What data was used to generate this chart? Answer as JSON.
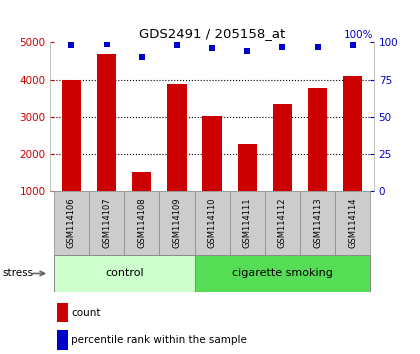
{
  "title": "GDS2491 / 205158_at",
  "samples": [
    "GSM114106",
    "GSM114107",
    "GSM114108",
    "GSM114109",
    "GSM114110",
    "GSM114111",
    "GSM114112",
    "GSM114113",
    "GSM114114"
  ],
  "counts": [
    4000,
    4700,
    1520,
    3880,
    3020,
    2280,
    3340,
    3780,
    4100
  ],
  "percentiles": [
    98,
    99,
    90,
    98,
    96,
    94,
    97,
    97,
    98
  ],
  "ylim_left": [
    1000,
    5000
  ],
  "ylim_right": [
    0,
    100
  ],
  "yticks_left": [
    1000,
    2000,
    3000,
    4000,
    5000
  ],
  "yticks_right": [
    0,
    25,
    50,
    75,
    100
  ],
  "bar_color": "#cc0000",
  "dot_color": "#0000cc",
  "n_control": 4,
  "control_label": "control",
  "smoking_label": "cigarette smoking",
  "stress_label": "stress",
  "legend_count": "count",
  "legend_percentile": "percentile rank within the sample",
  "control_color_light": "#ccffcc",
  "smoking_color": "#55dd55",
  "tick_label_color_left": "#cc0000",
  "tick_label_color_right": "#0000cc",
  "bar_bottom": 1000,
  "bar_width": 0.55,
  "label_box_color": "#cccccc",
  "label_box_edge": "#888888"
}
